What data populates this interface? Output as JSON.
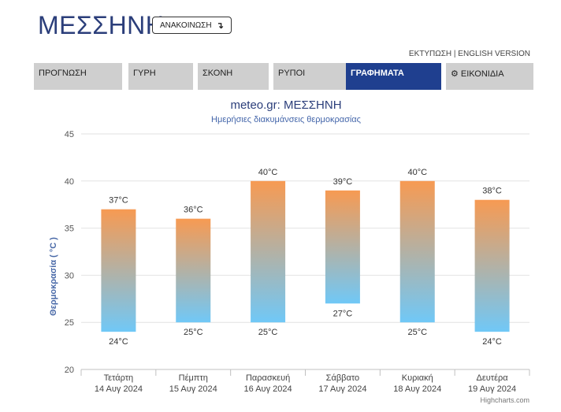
{
  "header": {
    "city": "ΜΕΣΣΗΝΗ",
    "announce_label": "ΑΝΑΚΟΙΝΩΣΗ",
    "announce_icon": "arrow-down-right-icon",
    "print_label": "ΕΚΤΥΠΩΣΗ",
    "link_separator": " | ",
    "english_label": "ENGLISH VERSION"
  },
  "tabs": [
    {
      "label": "ΠΡΟΓΝΩΣΗ"
    },
    {
      "label": "ΓΥΡΗ"
    },
    {
      "label": "ΣΚΟΝΗ"
    },
    {
      "label": "ΡΥΠΟΙ"
    },
    {
      "label": "ΓΡΑΦΗΜΑΤΑ",
      "active": true
    },
    {
      "label": "ΕΙΚΟΝΙΔΙΑ",
      "icon": "gear-icon"
    }
  ],
  "colors": {
    "tab_active": "#1f3f8f",
    "tab_inactive": "#cfcfcf",
    "bar_top": "#f79a52",
    "bar_bottom": "#70c8f7",
    "title": "#2b3e7a"
  },
  "chart_data": {
    "type": "bar",
    "subtype": "columnrange",
    "title": "meteo.gr: ΜΕΣΣΗΝΗ",
    "subtitle": "Ημερήσιες διακυμάνσεις θερμοκρασίας",
    "ylabel": "Θερμοκρασία ( °C )",
    "ylim": [
      20,
      45
    ],
    "yticks": [
      20,
      25,
      30,
      35,
      40,
      45
    ],
    "grid": true,
    "unit": "°C",
    "categories": [
      {
        "day": "Τετάρτη",
        "date": "14 Αυγ 2024"
      },
      {
        "day": "Πέμπτη",
        "date": "15 Αυγ 2024"
      },
      {
        "day": "Παρασκευή",
        "date": "16 Αυγ 2024"
      },
      {
        "day": "Σάββατο",
        "date": "17 Αυγ 2024"
      },
      {
        "day": "Κυριακή",
        "date": "18 Αυγ 2024"
      },
      {
        "day": "Δευτέρα",
        "date": "19 Αυγ 2024"
      }
    ],
    "series": [
      {
        "low": 24,
        "high": 37
      },
      {
        "low": 25,
        "high": 36
      },
      {
        "low": 25,
        "high": 40
      },
      {
        "low": 27,
        "high": 39
      },
      {
        "low": 25,
        "high": 40
      },
      {
        "low": 24,
        "high": 38
      }
    ],
    "credit": "Highcharts.com"
  }
}
